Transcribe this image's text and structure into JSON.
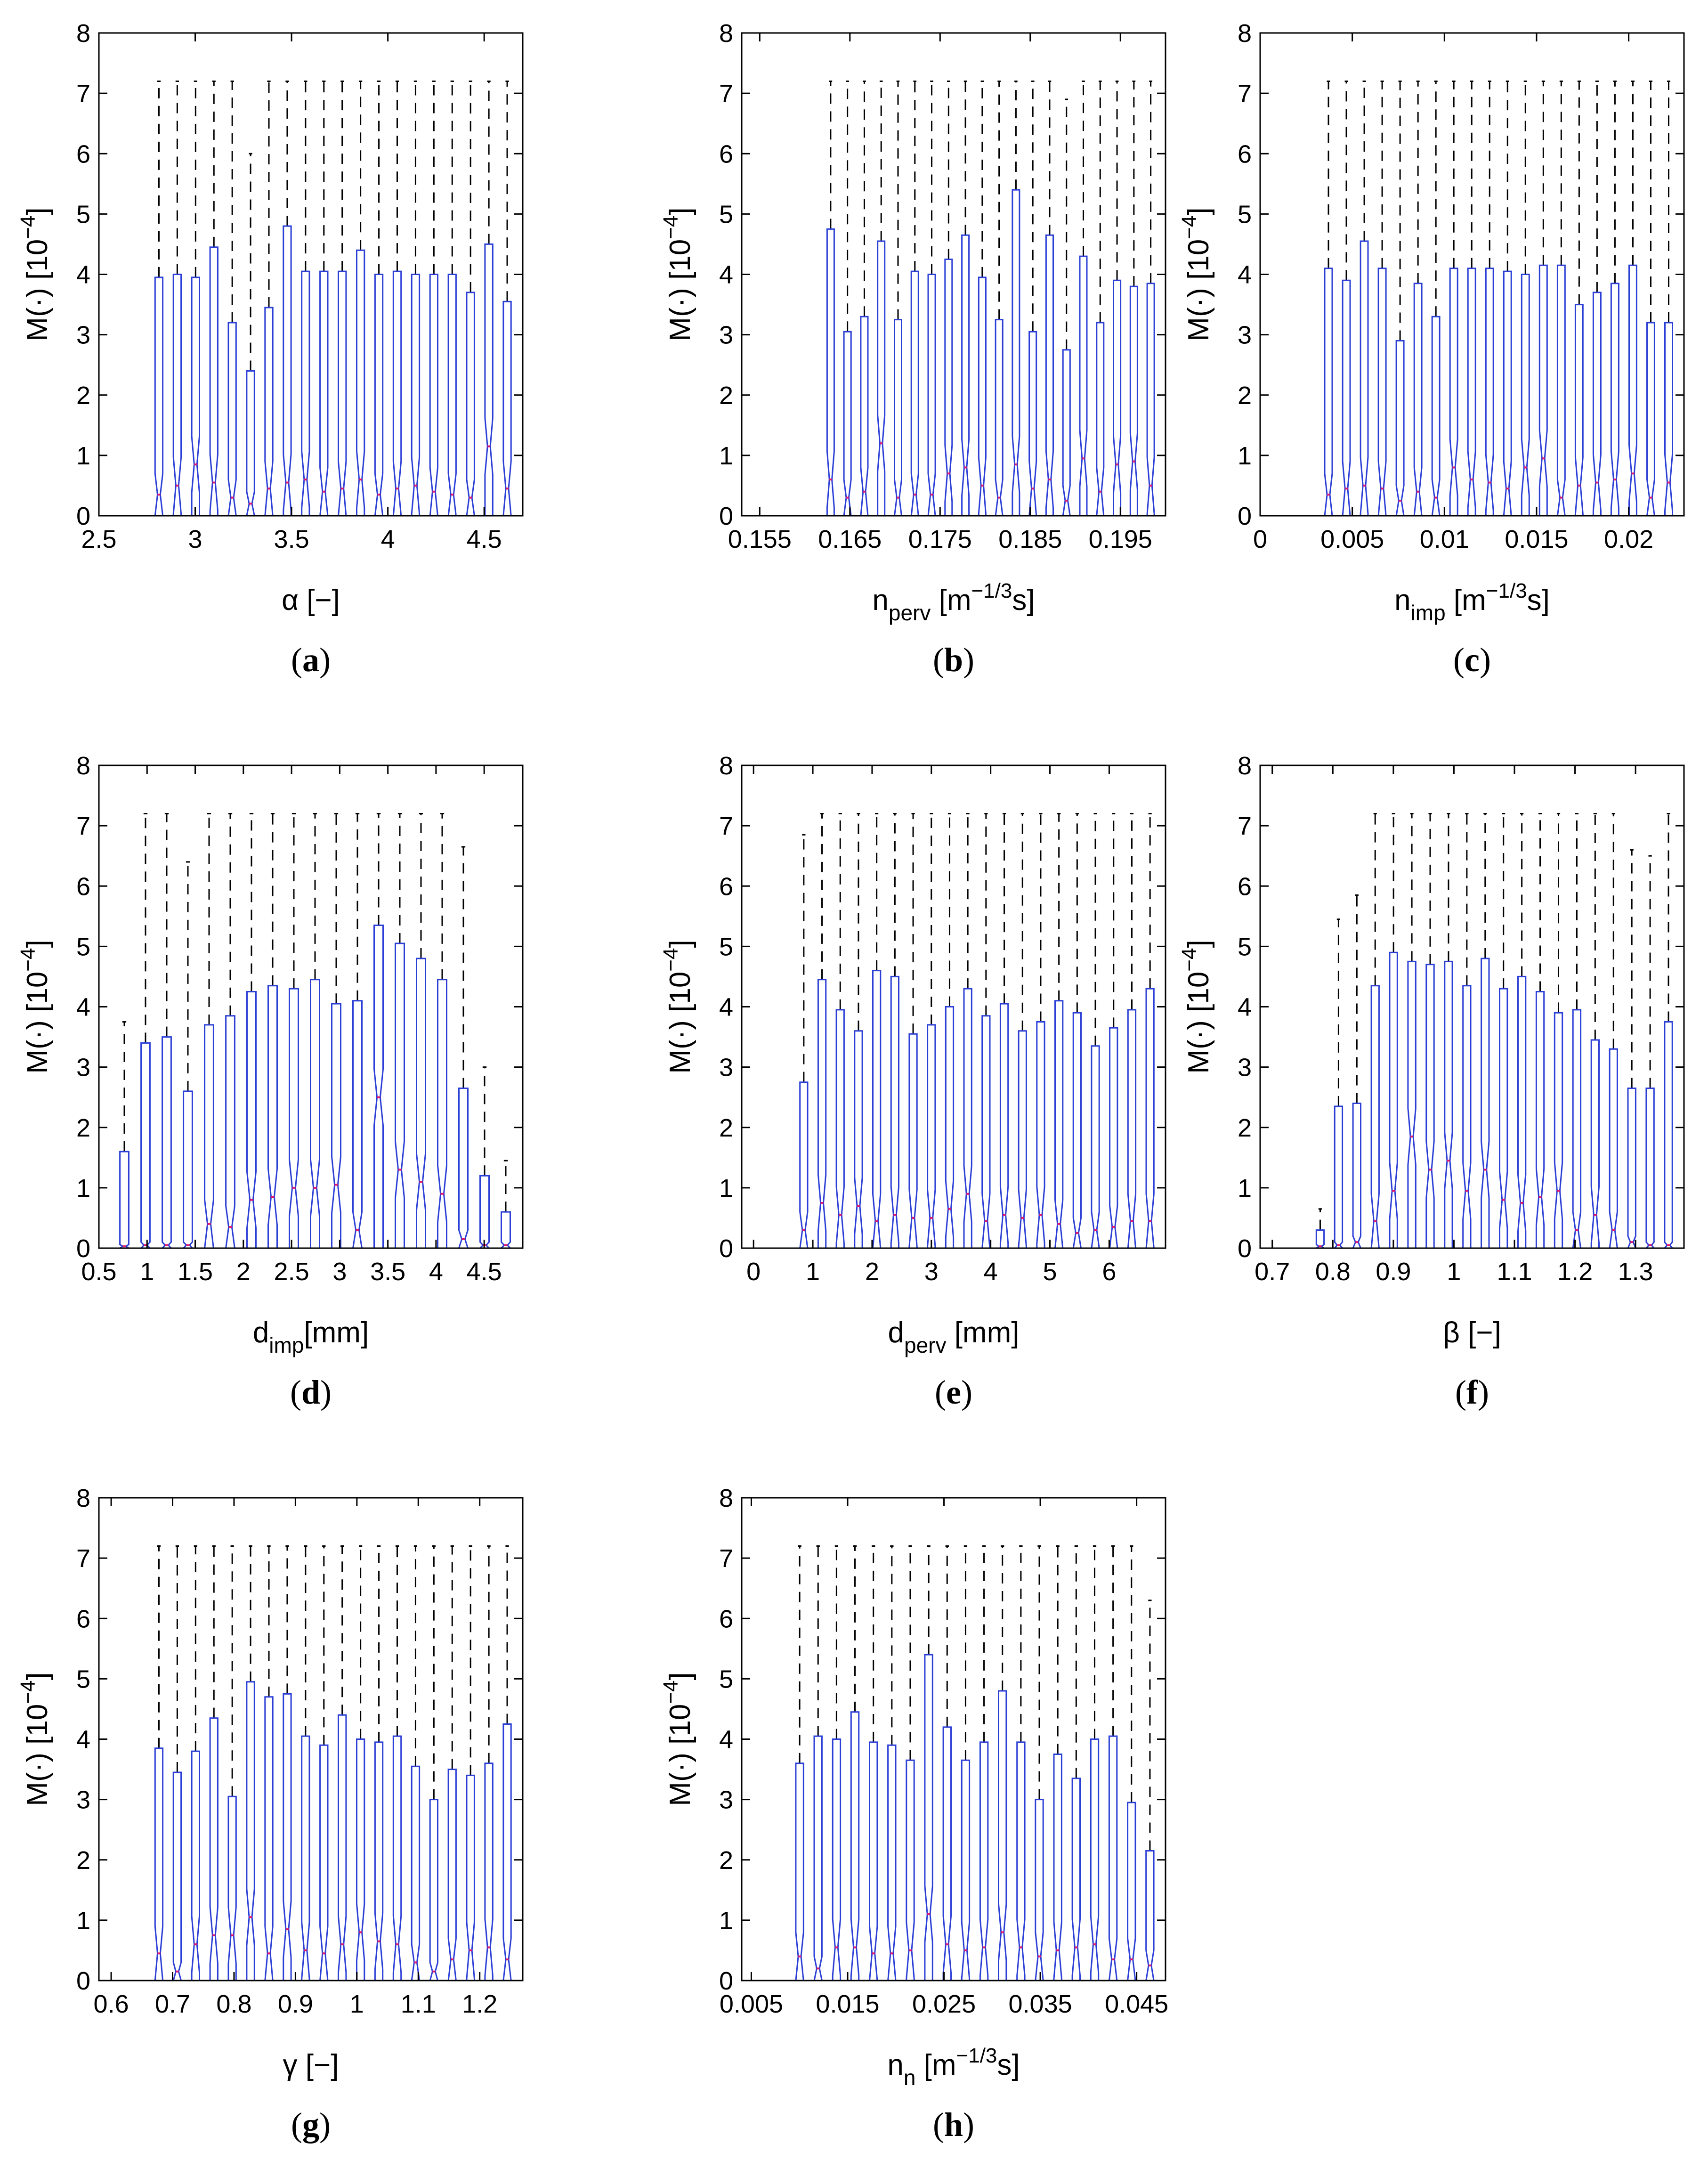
{
  "figure": {
    "colors": {
      "box": "#2b3fd6",
      "median": "#e0186c",
      "whisker": "#000000",
      "axis": "#000000"
    }
  },
  "chart_data": [
    {
      "type": "box",
      "panel": "a",
      "title": "",
      "xlabel": "α [−]",
      "ylabel": "M(·) [10^-4]",
      "ylabel_main": "M(·) [10",
      "ylabel_exp": "−4",
      "ylabel_close": "]",
      "xlim": [
        2.5,
        4.7
      ],
      "ylim": [
        0,
        8
      ],
      "x_ticks": [
        2.5,
        3,
        3.5,
        4,
        4.5
      ],
      "x_tick_labels": [
        "2.5",
        "3",
        "3.5",
        "4",
        "4.5"
      ],
      "y_ticks": [
        0,
        1,
        2,
        3,
        4,
        5,
        6,
        7,
        8
      ],
      "y_tick_labels": [
        "0",
        "1",
        "2",
        "3",
        "4",
        "5",
        "6",
        "7",
        "8"
      ],
      "box_tops": [
        3.95,
        4.0,
        3.95,
        4.45,
        3.2,
        2.4,
        3.45,
        4.8,
        4.05,
        4.05,
        4.05,
        4.4,
        4.0,
        4.05,
        4.0,
        4.0,
        4.0,
        3.7,
        4.5,
        3.55
      ],
      "medians": [
        0.35,
        0.5,
        0.85,
        0.55,
        0.3,
        0.2,
        0.45,
        0.55,
        0.6,
        0.4,
        0.45,
        0.6,
        0.35,
        0.45,
        0.5,
        0.4,
        0.35,
        0.3,
        1.15,
        0.45
      ],
      "whisker_tops": [
        7.2,
        7.2,
        7.2,
        7.2,
        7.2,
        6.0,
        7.2,
        7.2,
        7.2,
        7.2,
        7.2,
        7.2,
        7.2,
        7.2,
        7.2,
        7.2,
        7.2,
        7.2,
        7.2,
        7.2
      ]
    },
    {
      "type": "box",
      "panel": "b",
      "title": "",
      "xlabel_main": "n",
      "xlabel_sub": "perv",
      "xlabel_rest": " [m",
      "xlabel_sup": "−1/3",
      "xlabel_end": "s]",
      "ylabel": "M(·) [10^-4]",
      "ylabel_main": "M(·) [10",
      "ylabel_exp": "−4",
      "ylabel_close": "]",
      "xlim": [
        0.153,
        0.2
      ],
      "ylim": [
        0,
        8
      ],
      "x_ticks": [
        0.155,
        0.165,
        0.175,
        0.185,
        0.195
      ],
      "x_tick_labels": [
        "0.155",
        "0.165",
        "0.175",
        "0.185",
        "0.195"
      ],
      "y_ticks": [
        0,
        1,
        2,
        3,
        4,
        5,
        6,
        7,
        8
      ],
      "y_tick_labels": [
        "0",
        "1",
        "2",
        "3",
        "4",
        "5",
        "6",
        "7",
        "8"
      ],
      "box_tops": [
        4.75,
        3.05,
        3.3,
        4.55,
        3.25,
        4.05,
        4.0,
        4.25,
        4.65,
        3.95,
        3.25,
        5.4,
        3.05,
        4.65,
        2.75,
        4.3,
        3.2,
        3.9,
        3.8,
        3.85
      ],
      "medians": [
        0.6,
        0.3,
        0.4,
        1.2,
        0.3,
        0.35,
        0.35,
        0.7,
        0.8,
        0.5,
        0.3,
        0.85,
        0.45,
        0.6,
        0.25,
        0.95,
        0.4,
        0.85,
        0.9,
        0.5
      ],
      "whisker_tops": [
        7.2,
        7.2,
        7.2,
        7.2,
        7.2,
        7.2,
        7.2,
        7.2,
        7.2,
        7.2,
        7.2,
        7.2,
        7.2,
        7.2,
        6.9,
        7.2,
        7.2,
        7.2,
        7.2,
        7.2
      ]
    },
    {
      "type": "box",
      "panel": "c",
      "title": "",
      "xlabel_main": "n",
      "xlabel_sub": "imp",
      "xlabel_rest": " [m",
      "xlabel_sup": "−1/3",
      "xlabel_end": "s]",
      "ylabel": "M(·) [10^-4]",
      "ylabel_main": "M(·) [10",
      "ylabel_exp": "−4",
      "ylabel_close": "]",
      "xlim": [
        0,
        0.023
      ],
      "ylim": [
        0,
        8
      ],
      "x_ticks": [
        0,
        0.005,
        0.01,
        0.015,
        0.02
      ],
      "x_tick_labels": [
        "0",
        "0.005",
        "0.01",
        "0.015",
        "0.02"
      ],
      "y_ticks": [
        0,
        1,
        2,
        3,
        4,
        5,
        6,
        7,
        8
      ],
      "y_tick_labels": [
        "0",
        "1",
        "2",
        "3",
        "4",
        "5",
        "6",
        "7",
        "8"
      ],
      "box_tops": [
        4.1,
        3.9,
        4.55,
        4.1,
        2.9,
        3.85,
        3.3,
        4.1,
        4.1,
        4.1,
        4.05,
        4.0,
        4.15,
        4.15,
        3.5,
        3.7,
        3.85,
        4.15,
        3.2,
        3.2
      ],
      "medians": [
        0.35,
        0.45,
        0.5,
        0.45,
        0.25,
        0.4,
        0.3,
        0.8,
        0.6,
        0.55,
        0.45,
        0.8,
        0.95,
        0.3,
        0.5,
        0.55,
        0.6,
        0.7,
        0.3,
        0.55
      ],
      "whisker_tops": [
        7.2,
        7.2,
        7.2,
        7.2,
        7.2,
        7.2,
        7.2,
        7.2,
        7.2,
        7.2,
        7.2,
        7.2,
        7.2,
        7.2,
        7.2,
        7.2,
        7.2,
        7.2,
        7.2,
        7.2
      ]
    },
    {
      "type": "box",
      "panel": "d",
      "title": "",
      "xlabel_main": "d",
      "xlabel_sub": "imp",
      "xlabel_rest": "[mm]",
      "ylabel": "M(·) [10^-4]",
      "ylabel_main": "M(·) [10",
      "ylabel_exp": "−4",
      "ylabel_close": "]",
      "xlim": [
        0.5,
        4.9
      ],
      "ylim": [
        0,
        8
      ],
      "x_ticks": [
        0.5,
        1,
        1.5,
        2,
        2.5,
        3,
        3.5,
        4,
        4.5
      ],
      "x_tick_labels": [
        "0.5",
        "1",
        "1.5",
        "2",
        "2.5",
        "3",
        "3.5",
        "4",
        "4.5"
      ],
      "y_ticks": [
        0,
        1,
        2,
        3,
        4,
        5,
        6,
        7,
        8
      ],
      "y_tick_labels": [
        "0",
        "1",
        "2",
        "3",
        "4",
        "5",
        "6",
        "7",
        "8"
      ],
      "box_tops": [
        1.6,
        3.4,
        3.5,
        2.6,
        3.7,
        3.85,
        4.25,
        4.35,
        4.3,
        4.45,
        4.05,
        4.1,
        5.35,
        5.05,
        4.8,
        4.45,
        2.65,
        1.2,
        0.6
      ],
      "medians": [
        0.03,
        0.05,
        0.05,
        0.05,
        0.4,
        0.35,
        0.8,
        0.85,
        1.0,
        1.0,
        1.05,
        0.3,
        2.5,
        1.3,
        1.1,
        0.9,
        0.15,
        0.05,
        0.05
      ],
      "whisker_tops": [
        3.75,
        7.2,
        7.2,
        6.4,
        7.2,
        7.2,
        7.2,
        7.2,
        7.2,
        7.2,
        7.2,
        7.2,
        7.2,
        7.2,
        7.2,
        7.2,
        6.65,
        3.0,
        1.45
      ]
    },
    {
      "type": "box",
      "panel": "e",
      "title": "",
      "xlabel_main": "d",
      "xlabel_sub": "perv",
      "xlabel_rest": " [mm]",
      "ylabel": "M(·) [10^-4]",
      "ylabel_main": "M(·) [10",
      "ylabel_exp": "−4",
      "ylabel_close": "]",
      "xlim": [
        -0.2,
        6.95
      ],
      "ylim": [
        0,
        8
      ],
      "x_ticks": [
        0,
        1,
        2,
        3,
        4,
        5,
        6
      ],
      "x_tick_labels": [
        "0",
        "1",
        "2",
        "3",
        "4",
        "5",
        "6"
      ],
      "y_ticks": [
        0,
        1,
        2,
        3,
        4,
        5,
        6,
        7,
        8
      ],
      "y_tick_labels": [
        "0",
        "1",
        "2",
        "3",
        "4",
        "5",
        "6",
        "7",
        "8"
      ],
      "box_tops": [
        2.75,
        4.45,
        3.95,
        3.6,
        4.6,
        4.5,
        3.55,
        3.7,
        4.0,
        4.3,
        3.85,
        4.05,
        3.6,
        3.75,
        4.1,
        3.9,
        3.35,
        3.65,
        3.95,
        4.3
      ],
      "medians": [
        0.3,
        0.75,
        0.55,
        0.7,
        0.45,
        0.55,
        0.5,
        0.5,
        0.65,
        0.9,
        0.45,
        0.55,
        0.5,
        0.55,
        0.4,
        0.25,
        0.3,
        0.35,
        0.45,
        0.45
      ],
      "whisker_tops": [
        6.85,
        7.2,
        7.2,
        7.2,
        7.2,
        7.2,
        7.2,
        7.2,
        7.2,
        7.2,
        7.2,
        7.2,
        7.2,
        7.2,
        7.2,
        7.2,
        7.2,
        7.2,
        7.2,
        7.2
      ]
    },
    {
      "type": "box",
      "panel": "f",
      "title": "",
      "xlabel": "β [−]",
      "ylabel": "M(·) [10^-4]",
      "ylabel_main": "M(·) [10",
      "ylabel_exp": "−4",
      "ylabel_close": "]",
      "xlim": [
        0.68,
        1.38
      ],
      "ylim": [
        0,
        8
      ],
      "x_ticks": [
        0.7,
        0.8,
        0.9,
        1,
        1.1,
        1.2,
        1.3
      ],
      "x_tick_labels": [
        "0.7",
        "0.8",
        "0.9",
        "1",
        "1.1",
        "1.2",
        "1.3"
      ],
      "y_ticks": [
        0,
        1,
        2,
        3,
        4,
        5,
        6,
        7,
        8
      ],
      "y_tick_labels": [
        "0",
        "1",
        "2",
        "3",
        "4",
        "5",
        "6",
        "7",
        "8"
      ],
      "box_tops": [
        0.3,
        2.35,
        2.4,
        4.35,
        4.9,
        4.75,
        4.7,
        4.75,
        4.35,
        4.8,
        4.3,
        4.5,
        4.25,
        3.9,
        3.95,
        3.45,
        3.3,
        2.65,
        2.65,
        3.75
      ],
      "medians": [
        0.03,
        0.05,
        0.1,
        0.45,
        0.95,
        1.85,
        1.3,
        1.45,
        0.95,
        1.3,
        0.8,
        0.75,
        0.85,
        0.95,
        0.3,
        0.55,
        0.3,
        0.1,
        0.05,
        0.05
      ],
      "whisker_tops": [
        0.65,
        5.45,
        5.85,
        7.2,
        7.2,
        7.2,
        7.2,
        7.2,
        7.2,
        7.2,
        7.2,
        7.2,
        7.2,
        7.2,
        7.2,
        7.2,
        7.2,
        6.6,
        6.5,
        7.2
      ]
    },
    {
      "type": "box",
      "panel": "g",
      "title": "",
      "xlabel": "γ [−]",
      "ylabel": "M(·) [10^-4]",
      "ylabel_main": "M(·) [10",
      "ylabel_exp": "−4",
      "ylabel_close": "]",
      "xlim": [
        0.58,
        1.27
      ],
      "ylim": [
        0,
        8
      ],
      "x_ticks": [
        0.6,
        0.7,
        0.8,
        0.9,
        1,
        1.1,
        1.2
      ],
      "x_tick_labels": [
        "0.6",
        "0.7",
        "0.8",
        "0.9",
        "1",
        "1.1",
        "1.2"
      ],
      "y_ticks": [
        0,
        1,
        2,
        3,
        4,
        5,
        6,
        7,
        8
      ],
      "y_tick_labels": [
        "0",
        "1",
        "2",
        "3",
        "4",
        "5",
        "6",
        "7",
        "8"
      ],
      "box_tops": [
        3.85,
        3.45,
        3.8,
        4.35,
        3.05,
        4.95,
        4.7,
        4.75,
        4.05,
        3.9,
        4.4,
        4.0,
        3.95,
        4.05,
        3.55,
        3.0,
        3.5,
        3.4,
        3.6,
        4.25
      ],
      "medians": [
        0.45,
        0.15,
        0.6,
        0.75,
        0.75,
        1.05,
        0.45,
        0.85,
        0.5,
        0.45,
        0.6,
        0.8,
        0.65,
        0.6,
        0.3,
        0.15,
        0.35,
        0.5,
        0.55,
        0.35
      ],
      "whisker_tops": [
        7.2,
        7.2,
        7.2,
        7.2,
        7.2,
        7.2,
        7.2,
        7.2,
        7.2,
        7.2,
        7.2,
        7.2,
        7.2,
        7.2,
        7.2,
        7.2,
        7.2,
        7.2,
        7.2,
        7.2
      ]
    },
    {
      "type": "box",
      "panel": "h",
      "title": "",
      "xlabel_main": "n",
      "xlabel_sub": "n",
      "xlabel_rest": " [m",
      "xlabel_sup": "−1/3",
      "xlabel_end": "s]",
      "ylabel": "M(·) [10^-4]",
      "ylabel_main": "M(·) [10",
      "ylabel_exp": "−4",
      "ylabel_close": "]",
      "xlim": [
        0.004,
        0.048
      ],
      "ylim": [
        0,
        8
      ],
      "x_ticks": [
        0.005,
        0.015,
        0.025,
        0.035,
        0.045
      ],
      "x_tick_labels": [
        "0.005",
        "0.015",
        "0.025",
        "0.035",
        "0.045"
      ],
      "y_ticks": [
        0,
        1,
        2,
        3,
        4,
        5,
        6,
        7,
        8
      ],
      "y_tick_labels": [
        "0",
        "1",
        "2",
        "3",
        "4",
        "5",
        "6",
        "7",
        "8"
      ],
      "box_tops": [
        3.6,
        4.05,
        4.0,
        4.45,
        3.95,
        3.9,
        3.65,
        5.4,
        4.2,
        3.65,
        3.95,
        4.8,
        3.95,
        3.0,
        3.75,
        3.35,
        4.0,
        4.05,
        2.95,
        2.15
      ],
      "medians": [
        0.4,
        0.2,
        0.55,
        0.55,
        0.45,
        0.45,
        0.5,
        1.1,
        0.6,
        0.5,
        0.55,
        0.8,
        0.55,
        0.4,
        0.5,
        0.55,
        0.6,
        0.35,
        0.35,
        0.25
      ],
      "whisker_tops": [
        7.2,
        7.2,
        7.2,
        7.2,
        7.2,
        7.2,
        7.2,
        7.2,
        7.2,
        7.2,
        7.2,
        7.2,
        7.2,
        7.2,
        7.2,
        7.2,
        7.2,
        7.2,
        7.2,
        6.3
      ]
    }
  ],
  "panel_captions": [
    "a",
    "b",
    "c",
    "d",
    "e",
    "f",
    "g",
    "h"
  ],
  "caption_open": "(",
  "caption_close": ")"
}
